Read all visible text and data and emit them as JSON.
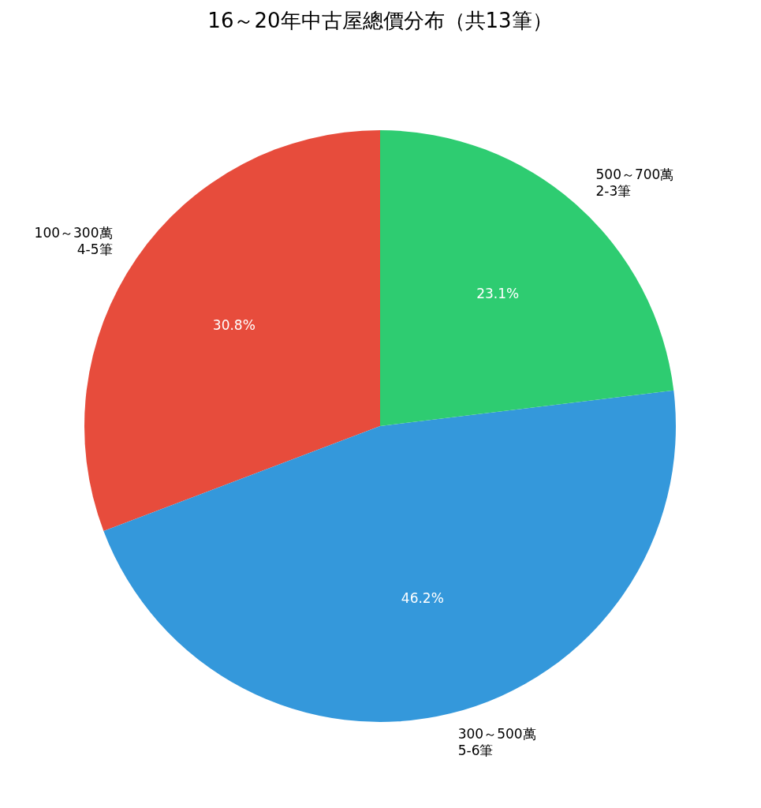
{
  "chart_data": {
    "type": "pie",
    "title": "16～20年中古屋總價分布（共13筆）",
    "categories": [
      "100～300萬\n4-5筆",
      "300～500萬\n5-6筆",
      "500～700萬\n2-3筆"
    ],
    "values": [
      30.8,
      46.2,
      23.1
    ],
    "colors": [
      "#e74c3c",
      "#3498db",
      "#2ecc71"
    ],
    "value_labels": [
      "30.8%",
      "46.2%",
      "23.1%"
    ]
  }
}
